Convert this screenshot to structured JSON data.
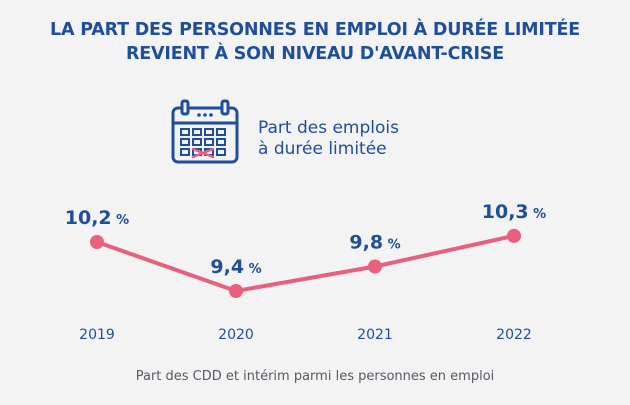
{
  "title": {
    "line1": "LA PART DES PERSONNES EN EMPLOI À DURÉE LIMITÉE",
    "line2": "REVIENT À SON NIVEAU D'AVANT-CRISE"
  },
  "legend": {
    "icon": "calendar-icon",
    "line1": "Part des emplois",
    "line2": "à durée limitée"
  },
  "caption": "Part des CDD et intérim parmi les personnes en emploi",
  "colors": {
    "title": "#1f4e9b",
    "line": "#e8607e",
    "axis_labels": "#1f4e9b",
    "caption": "#555a64"
  },
  "chart_data": {
    "type": "line",
    "categories": [
      "2019",
      "2020",
      "2021",
      "2022"
    ],
    "values": [
      10.2,
      9.4,
      9.8,
      10.3
    ],
    "labels": [
      "10,2",
      "9,4",
      "9,8",
      "10,3"
    ],
    "unit": "%",
    "grid": false,
    "legend": "top-center"
  }
}
